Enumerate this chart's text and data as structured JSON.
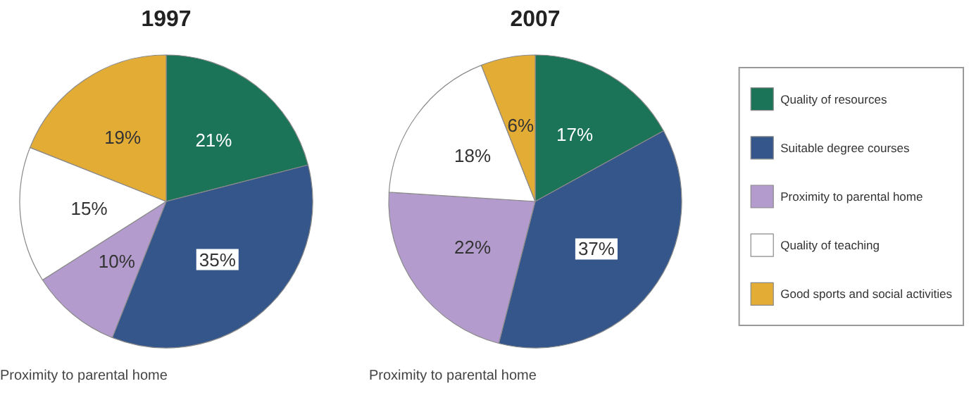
{
  "chart_data": {
    "type": "pie",
    "categories": [
      "Quality of resources",
      "Suitable degree courses",
      "Proximity to parental home",
      "Quality of teaching",
      "Good sports and social activities"
    ],
    "colors": [
      "#1b7358",
      "#34568a",
      "#b39ccd",
      "#ffffff",
      "#e3ac35"
    ],
    "legend": "right",
    "series": [
      {
        "name": "1997",
        "values": [
          21,
          35,
          10,
          15,
          19
        ],
        "value_labels": [
          "21%",
          "35%",
          "10%",
          "15%",
          "19%"
        ]
      },
      {
        "name": "2007",
        "values": [
          17,
          37,
          22,
          18,
          6
        ],
        "value_labels": [
          "17%",
          "37%",
          "22%",
          "18%",
          "6%"
        ]
      }
    ],
    "annotations": [
      "Proximity to parental home",
      "Proximity to parental home"
    ]
  }
}
